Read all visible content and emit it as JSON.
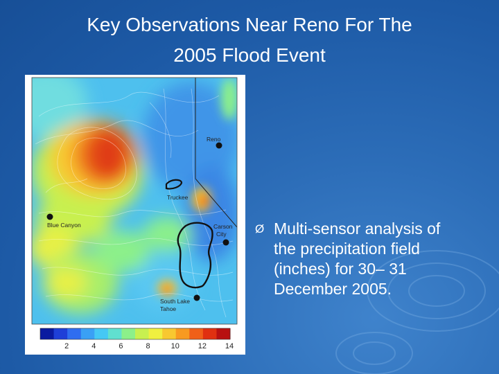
{
  "slide": {
    "title_line1": "Key Observations Near Reno For The",
    "title_line2": "2005 Flood Event",
    "bullet_marker": "Ø",
    "bullet_text": "Multi-sensor analysis of the precipitation field (inches) for 30– 31 December 2005."
  },
  "map": {
    "stations": [
      {
        "label": "Reno"
      },
      {
        "label": "Truckee"
      },
      {
        "label": "Blue Canyon"
      },
      {
        "label": "Carson"
      },
      {
        "label": "City"
      },
      {
        "label": "South Lake"
      },
      {
        "label": "Tahoe"
      }
    ],
    "colorbar": {
      "ticks": [
        "2",
        "4",
        "6",
        "8",
        "10",
        "12",
        "14"
      ],
      "colors": [
        "#0a1aa0",
        "#1e3fd8",
        "#2f6df0",
        "#3aa0f5",
        "#45c8f5",
        "#60e0d0",
        "#8cf08a",
        "#c8f050",
        "#f0f040",
        "#f8c830",
        "#f89a20",
        "#f06018",
        "#e03010",
        "#b81010"
      ]
    }
  },
  "colors": {
    "background": "#1d5aa6",
    "text": "#ffffff"
  }
}
